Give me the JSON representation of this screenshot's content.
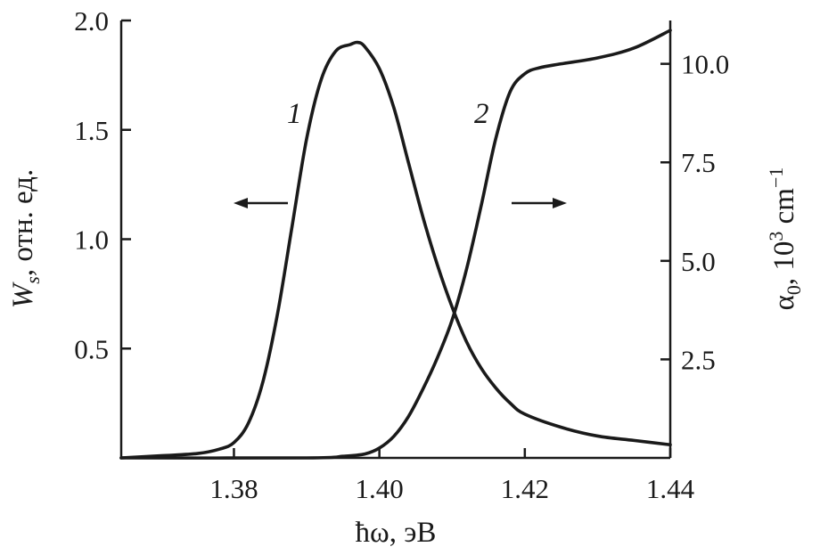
{
  "chart_data": {
    "type": "line",
    "x_axis": {
      "label": "ħω, эВ",
      "range": [
        1.3645,
        1.44
      ],
      "ticks": [
        "1.38",
        "1.40",
        "1.42",
        "1.44"
      ]
    },
    "y_left": {
      "label_main": "W",
      "label_sub": "s",
      "label_rest": ", отн. ед.",
      "range": [
        0,
        2.0
      ],
      "ticks": [
        "0.5",
        "1.0",
        "1.5",
        "2.0"
      ]
    },
    "y_right": {
      "label_main": "α",
      "label_sub": "0",
      "label_mid": ",  10",
      "label_sup1": "3",
      "label_unit": " cm",
      "label_sup2": "−1",
      "range": [
        0,
        11.1
      ],
      "ticks": [
        "2.5",
        "5.0",
        "7.5",
        "10.0"
      ]
    },
    "series": [
      {
        "name": "1",
        "axis": "left",
        "x": [
          1.3645,
          1.37,
          1.375,
          1.378,
          1.38,
          1.382,
          1.384,
          1.386,
          1.388,
          1.39,
          1.392,
          1.394,
          1.396,
          1.397,
          1.398,
          1.4,
          1.402,
          1.404,
          1.406,
          1.408,
          1.41,
          1.412,
          1.414,
          1.416,
          1.418,
          1.42,
          1.425,
          1.43,
          1.435,
          1.44
        ],
        "y": [
          0.0,
          0.01,
          0.02,
          0.04,
          0.07,
          0.16,
          0.35,
          0.66,
          1.06,
          1.46,
          1.73,
          1.86,
          1.89,
          1.9,
          1.88,
          1.78,
          1.6,
          1.35,
          1.1,
          0.88,
          0.69,
          0.53,
          0.41,
          0.32,
          0.25,
          0.2,
          0.14,
          0.1,
          0.08,
          0.06
        ]
      },
      {
        "name": "2",
        "axis": "right",
        "x": [
          1.3645,
          1.39,
          1.395,
          1.398,
          1.4,
          1.402,
          1.404,
          1.406,
          1.408,
          1.41,
          1.412,
          1.414,
          1.416,
          1.418,
          1.42,
          1.422,
          1.425,
          1.43,
          1.435,
          1.44
        ],
        "y": [
          0.0,
          0.0,
          0.04,
          0.1,
          0.25,
          0.55,
          1.05,
          1.75,
          2.55,
          3.5,
          4.8,
          6.4,
          8.1,
          9.3,
          9.75,
          9.9,
          10.0,
          10.15,
          10.4,
          10.85
        ]
      }
    ],
    "markers": [
      {
        "text": "←",
        "series": "1",
        "points_to": "left axis"
      },
      {
        "text": "→",
        "series": "2",
        "points_to": "right axis"
      }
    ],
    "grid": false
  }
}
